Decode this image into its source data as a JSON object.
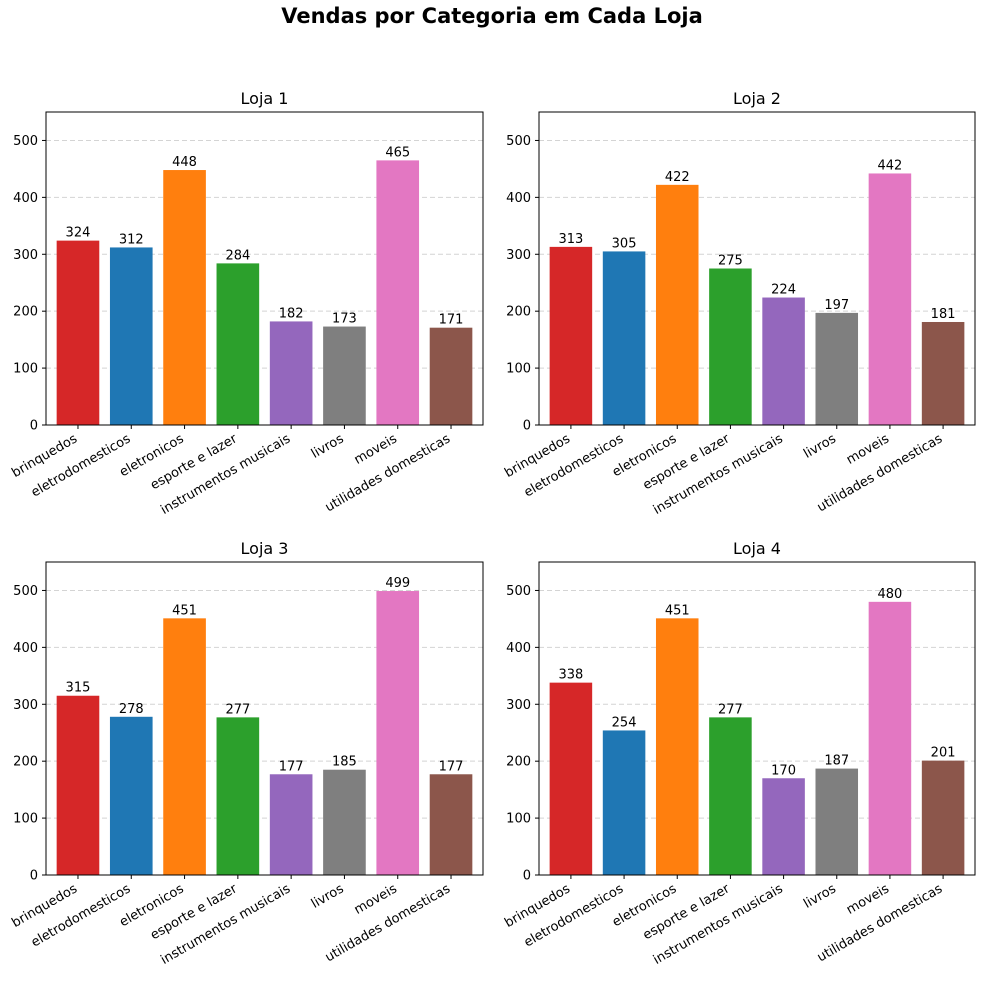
{
  "title": "Vendas por Categoria em Cada Loja",
  "chart_data": [
    {
      "type": "bar",
      "title": "Loja 1",
      "categories": [
        "brinquedos",
        "eletrodomesticos",
        "eletronicos",
        "esporte e lazer",
        "instrumentos musicais",
        "livros",
        "moveis",
        "utilidades domesticas"
      ],
      "values": [
        324,
        312,
        448,
        284,
        182,
        173,
        465,
        171
      ],
      "colors": [
        "#d62728",
        "#1f77b4",
        "#ff7f0e",
        "#2ca02c",
        "#9467bd",
        "#7f7f7f",
        "#e377c2",
        "#8c564b"
      ],
      "ylim": [
        0,
        550
      ],
      "yticks": [
        0,
        100,
        200,
        300,
        400,
        500
      ],
      "grid": "y, dashed",
      "xlabel": "",
      "ylabel": ""
    },
    {
      "type": "bar",
      "title": "Loja 2",
      "categories": [
        "brinquedos",
        "eletrodomesticos",
        "eletronicos",
        "esporte e lazer",
        "instrumentos musicais",
        "livros",
        "moveis",
        "utilidades domesticas"
      ],
      "values": [
        313,
        305,
        422,
        275,
        224,
        197,
        442,
        181
      ],
      "colors": [
        "#d62728",
        "#1f77b4",
        "#ff7f0e",
        "#2ca02c",
        "#9467bd",
        "#7f7f7f",
        "#e377c2",
        "#8c564b"
      ],
      "ylim": [
        0,
        550
      ],
      "yticks": [
        0,
        100,
        200,
        300,
        400,
        500
      ],
      "grid": "y, dashed",
      "xlabel": "",
      "ylabel": ""
    },
    {
      "type": "bar",
      "title": "Loja 3",
      "categories": [
        "brinquedos",
        "eletrodomesticos",
        "eletronicos",
        "esporte e lazer",
        "instrumentos musicais",
        "livros",
        "moveis",
        "utilidades domesticas"
      ],
      "values": [
        315,
        278,
        451,
        277,
        177,
        185,
        499,
        177
      ],
      "colors": [
        "#d62728",
        "#1f77b4",
        "#ff7f0e",
        "#2ca02c",
        "#9467bd",
        "#7f7f7f",
        "#e377c2",
        "#8c564b"
      ],
      "ylim": [
        0,
        550
      ],
      "yticks": [
        0,
        100,
        200,
        300,
        400,
        500
      ],
      "grid": "y, dashed",
      "xlabel": "",
      "ylabel": ""
    },
    {
      "type": "bar",
      "title": "Loja 4",
      "categories": [
        "brinquedos",
        "eletrodomesticos",
        "eletronicos",
        "esporte e lazer",
        "instrumentos musicais",
        "livros",
        "moveis",
        "utilidades domesticas"
      ],
      "values": [
        338,
        254,
        451,
        277,
        170,
        187,
        480,
        201
      ],
      "colors": [
        "#d62728",
        "#1f77b4",
        "#ff7f0e",
        "#2ca02c",
        "#9467bd",
        "#7f7f7f",
        "#e377c2",
        "#8c564b"
      ],
      "ylim": [
        0,
        550
      ],
      "yticks": [
        0,
        100,
        200,
        300,
        400,
        500
      ],
      "grid": "y, dashed",
      "xlabel": "",
      "ylabel": ""
    }
  ]
}
